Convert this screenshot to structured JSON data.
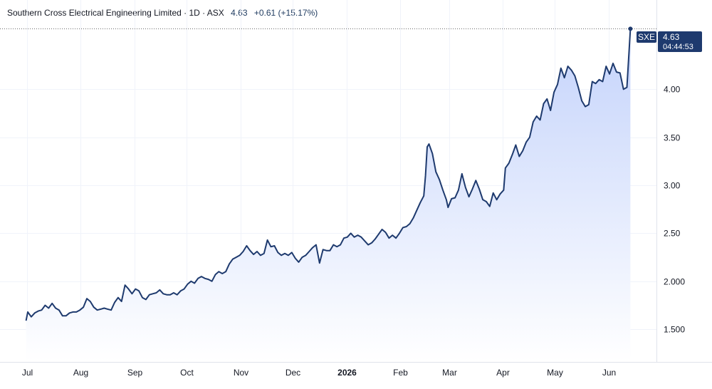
{
  "header": {
    "symbol_desc": "Southern Cross Electrical Engineering Limited · 1D · ASX",
    "last": "4.63",
    "change": "+0.61 (+15.17%)"
  },
  "badge": {
    "symbol": "SXE",
    "price": "4.63",
    "countdown": "04:44:53"
  },
  "colors": {
    "line": "#1e3a6e",
    "area_top": "#c4d3fb",
    "area_bottom": "#ffffff",
    "grid": "#f0f3fa",
    "badge": "#1e3a6e"
  },
  "chart_data": {
    "type": "area",
    "y_ticks": [
      "1.500",
      "2.000",
      "2.50",
      "3.00",
      "3.50",
      "4.00"
    ],
    "ylim": [
      1.16,
      4.93
    ],
    "x_ticks": [
      {
        "label": "Jul",
        "x": 0.5
      },
      {
        "label": "Aug",
        "x": 31.5
      },
      {
        "label": "Sep",
        "x": 62.5
      },
      {
        "label": "Oct",
        "x": 92.5
      },
      {
        "label": "Nov",
        "x": 123.5
      },
      {
        "label": "Dec",
        "x": 153.5
      },
      {
        "label": "2026",
        "x": 184.5,
        "bold": true
      },
      {
        "label": "Feb",
        "x": 215.5
      },
      {
        "label": "Mar",
        "x": 243.5
      },
      {
        "label": "Apr",
        "x": 274.5
      },
      {
        "label": "May",
        "x": 304.5
      },
      {
        "label": "Jun",
        "x": 335.5
      }
    ],
    "xlim": [
      -15,
      363
    ],
    "x_unit": "calendar days from Jun 16",
    "series": [
      {
        "values": [
          [
            0,
            1.59
          ],
          [
            1,
            1.68
          ],
          [
            3,
            1.63
          ],
          [
            5,
            1.67
          ],
          [
            7,
            1.69
          ],
          [
            9,
            1.7
          ],
          [
            11,
            1.75
          ],
          [
            13,
            1.72
          ],
          [
            15,
            1.77
          ],
          [
            17,
            1.72
          ],
          [
            19,
            1.7
          ],
          [
            21,
            1.64
          ],
          [
            23,
            1.64
          ],
          [
            25,
            1.67
          ],
          [
            27,
            1.68
          ],
          [
            29,
            1.68
          ],
          [
            31,
            1.7
          ],
          [
            33,
            1.73
          ],
          [
            35,
            1.82
          ],
          [
            37,
            1.79
          ],
          [
            39,
            1.73
          ],
          [
            41,
            1.7
          ],
          [
            43,
            1.71
          ],
          [
            45,
            1.72
          ],
          [
            47,
            1.71
          ],
          [
            49,
            1.7
          ],
          [
            51,
            1.78
          ],
          [
            53,
            1.83
          ],
          [
            55,
            1.79
          ],
          [
            57,
            1.96
          ],
          [
            59,
            1.92
          ],
          [
            61,
            1.87
          ],
          [
            63,
            1.92
          ],
          [
            65,
            1.9
          ],
          [
            67,
            1.83
          ],
          [
            69,
            1.81
          ],
          [
            71,
            1.86
          ],
          [
            73,
            1.87
          ],
          [
            75,
            1.88
          ],
          [
            77,
            1.91
          ],
          [
            79,
            1.87
          ],
          [
            81,
            1.86
          ],
          [
            83,
            1.86
          ],
          [
            85,
            1.88
          ],
          [
            87,
            1.86
          ],
          [
            89,
            1.9
          ],
          [
            91,
            1.92
          ],
          [
            93,
            1.97
          ],
          [
            95,
            2.0
          ],
          [
            97,
            1.98
          ],
          [
            99,
            2.03
          ],
          [
            101,
            2.05
          ],
          [
            103,
            2.03
          ],
          [
            105,
            2.02
          ],
          [
            107,
            2.0
          ],
          [
            109,
            2.07
          ],
          [
            111,
            2.1
          ],
          [
            113,
            2.08
          ],
          [
            115,
            2.1
          ],
          [
            117,
            2.18
          ],
          [
            119,
            2.23
          ],
          [
            121,
            2.25
          ],
          [
            123,
            2.27
          ],
          [
            125,
            2.31
          ],
          [
            127,
            2.37
          ],
          [
            129,
            2.32
          ],
          [
            131,
            2.28
          ],
          [
            133,
            2.31
          ],
          [
            135,
            2.27
          ],
          [
            137,
            2.29
          ],
          [
            139,
            2.43
          ],
          [
            141,
            2.36
          ],
          [
            143,
            2.37
          ],
          [
            145,
            2.3
          ],
          [
            147,
            2.27
          ],
          [
            149,
            2.29
          ],
          [
            151,
            2.27
          ],
          [
            153,
            2.3
          ],
          [
            155,
            2.24
          ],
          [
            157,
            2.2
          ],
          [
            159,
            2.25
          ],
          [
            161,
            2.27
          ],
          [
            163,
            2.31
          ],
          [
            165,
            2.35
          ],
          [
            167,
            2.38
          ],
          [
            169,
            2.19
          ],
          [
            171,
            2.33
          ],
          [
            173,
            2.32
          ],
          [
            175,
            2.32
          ],
          [
            177,
            2.38
          ],
          [
            179,
            2.36
          ],
          [
            181,
            2.38
          ],
          [
            183,
            2.45
          ],
          [
            185,
            2.46
          ],
          [
            187,
            2.5
          ],
          [
            189,
            2.46
          ],
          [
            191,
            2.48
          ],
          [
            193,
            2.46
          ],
          [
            195,
            2.42
          ],
          [
            197,
            2.38
          ],
          [
            199,
            2.4
          ],
          [
            201,
            2.44
          ],
          [
            203,
            2.49
          ],
          [
            205,
            2.54
          ],
          [
            207,
            2.51
          ],
          [
            209,
            2.45
          ],
          [
            211,
            2.48
          ],
          [
            213,
            2.45
          ],
          [
            215,
            2.5
          ],
          [
            217,
            2.56
          ],
          [
            219,
            2.57
          ],
          [
            221,
            2.6
          ],
          [
            223,
            2.66
          ],
          [
            225,
            2.74
          ],
          [
            227,
            2.82
          ],
          [
            229,
            2.89
          ],
          [
            230,
            3.1
          ],
          [
            231,
            3.4
          ],
          [
            232,
            3.43
          ],
          [
            234,
            3.33
          ],
          [
            236,
            3.14
          ],
          [
            238,
            3.06
          ],
          [
            240,
            2.95
          ],
          [
            242,
            2.85
          ],
          [
            243,
            2.77
          ],
          [
            245,
            2.86
          ],
          [
            247,
            2.87
          ],
          [
            249,
            2.95
          ],
          [
            251,
            3.12
          ],
          [
            253,
            2.98
          ],
          [
            255,
            2.88
          ],
          [
            257,
            2.96
          ],
          [
            259,
            3.05
          ],
          [
            261,
            2.96
          ],
          [
            263,
            2.85
          ],
          [
            265,
            2.83
          ],
          [
            267,
            2.78
          ],
          [
            269,
            2.92
          ],
          [
            271,
            2.85
          ],
          [
            273,
            2.91
          ],
          [
            275,
            2.95
          ],
          [
            276,
            3.18
          ],
          [
            278,
            3.23
          ],
          [
            280,
            3.32
          ],
          [
            282,
            3.42
          ],
          [
            284,
            3.3
          ],
          [
            286,
            3.36
          ],
          [
            288,
            3.45
          ],
          [
            290,
            3.5
          ],
          [
            292,
            3.66
          ],
          [
            294,
            3.72
          ],
          [
            296,
            3.68
          ],
          [
            298,
            3.85
          ],
          [
            300,
            3.9
          ],
          [
            302,
            3.78
          ],
          [
            304,
            3.97
          ],
          [
            306,
            4.05
          ],
          [
            308,
            4.22
          ],
          [
            310,
            4.12
          ],
          [
            312,
            4.24
          ],
          [
            314,
            4.2
          ],
          [
            316,
            4.14
          ],
          [
            318,
            4.02
          ],
          [
            320,
            3.88
          ],
          [
            322,
            3.82
          ],
          [
            324,
            3.84
          ],
          [
            326,
            4.08
          ],
          [
            328,
            4.06
          ],
          [
            330,
            4.1
          ],
          [
            332,
            4.08
          ],
          [
            334,
            4.24
          ],
          [
            336,
            4.16
          ],
          [
            338,
            4.27
          ],
          [
            340,
            4.18
          ],
          [
            342,
            4.17
          ],
          [
            344,
            4.0
          ],
          [
            346,
            4.02
          ],
          [
            348,
            4.63
          ]
        ]
      }
    ],
    "grid": true
  }
}
